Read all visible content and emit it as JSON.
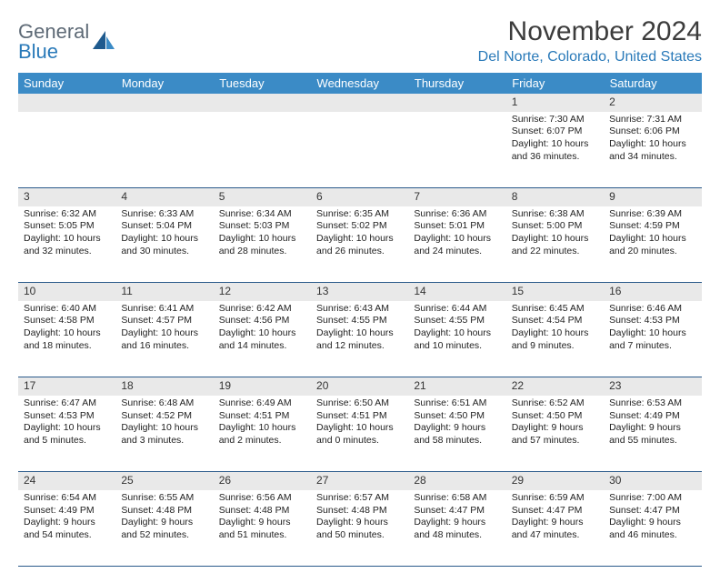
{
  "logo": {
    "line1": "General",
    "line2": "Blue"
  },
  "title": "November 2024",
  "location": "Del Norte, Colorado, United States",
  "colors": {
    "header_bg": "#3b8bc6",
    "header_text": "#ffffff",
    "daynum_bg": "#e9e9e9",
    "accent": "#2a7ab9",
    "rule": "#2a5a8a",
    "logo_gray": "#5e6a76"
  },
  "day_headers": [
    "Sunday",
    "Monday",
    "Tuesday",
    "Wednesday",
    "Thursday",
    "Friday",
    "Saturday"
  ],
  "weeks": [
    {
      "nums": [
        "",
        "",
        "",
        "",
        "",
        "1",
        "2"
      ],
      "cells": [
        null,
        null,
        null,
        null,
        null,
        {
          "sunrise": "Sunrise: 7:30 AM",
          "sunset": "Sunset: 6:07 PM",
          "daylight": "Daylight: 10 hours and 36 minutes."
        },
        {
          "sunrise": "Sunrise: 7:31 AM",
          "sunset": "Sunset: 6:06 PM",
          "daylight": "Daylight: 10 hours and 34 minutes."
        }
      ]
    },
    {
      "nums": [
        "3",
        "4",
        "5",
        "6",
        "7",
        "8",
        "9"
      ],
      "cells": [
        {
          "sunrise": "Sunrise: 6:32 AM",
          "sunset": "Sunset: 5:05 PM",
          "daylight": "Daylight: 10 hours and 32 minutes."
        },
        {
          "sunrise": "Sunrise: 6:33 AM",
          "sunset": "Sunset: 5:04 PM",
          "daylight": "Daylight: 10 hours and 30 minutes."
        },
        {
          "sunrise": "Sunrise: 6:34 AM",
          "sunset": "Sunset: 5:03 PM",
          "daylight": "Daylight: 10 hours and 28 minutes."
        },
        {
          "sunrise": "Sunrise: 6:35 AM",
          "sunset": "Sunset: 5:02 PM",
          "daylight": "Daylight: 10 hours and 26 minutes."
        },
        {
          "sunrise": "Sunrise: 6:36 AM",
          "sunset": "Sunset: 5:01 PM",
          "daylight": "Daylight: 10 hours and 24 minutes."
        },
        {
          "sunrise": "Sunrise: 6:38 AM",
          "sunset": "Sunset: 5:00 PM",
          "daylight": "Daylight: 10 hours and 22 minutes."
        },
        {
          "sunrise": "Sunrise: 6:39 AM",
          "sunset": "Sunset: 4:59 PM",
          "daylight": "Daylight: 10 hours and 20 minutes."
        }
      ]
    },
    {
      "nums": [
        "10",
        "11",
        "12",
        "13",
        "14",
        "15",
        "16"
      ],
      "cells": [
        {
          "sunrise": "Sunrise: 6:40 AM",
          "sunset": "Sunset: 4:58 PM",
          "daylight": "Daylight: 10 hours and 18 minutes."
        },
        {
          "sunrise": "Sunrise: 6:41 AM",
          "sunset": "Sunset: 4:57 PM",
          "daylight": "Daylight: 10 hours and 16 minutes."
        },
        {
          "sunrise": "Sunrise: 6:42 AM",
          "sunset": "Sunset: 4:56 PM",
          "daylight": "Daylight: 10 hours and 14 minutes."
        },
        {
          "sunrise": "Sunrise: 6:43 AM",
          "sunset": "Sunset: 4:55 PM",
          "daylight": "Daylight: 10 hours and 12 minutes."
        },
        {
          "sunrise": "Sunrise: 6:44 AM",
          "sunset": "Sunset: 4:55 PM",
          "daylight": "Daylight: 10 hours and 10 minutes."
        },
        {
          "sunrise": "Sunrise: 6:45 AM",
          "sunset": "Sunset: 4:54 PM",
          "daylight": "Daylight: 10 hours and 9 minutes."
        },
        {
          "sunrise": "Sunrise: 6:46 AM",
          "sunset": "Sunset: 4:53 PM",
          "daylight": "Daylight: 10 hours and 7 minutes."
        }
      ]
    },
    {
      "nums": [
        "17",
        "18",
        "19",
        "20",
        "21",
        "22",
        "23"
      ],
      "cells": [
        {
          "sunrise": "Sunrise: 6:47 AM",
          "sunset": "Sunset: 4:53 PM",
          "daylight": "Daylight: 10 hours and 5 minutes."
        },
        {
          "sunrise": "Sunrise: 6:48 AM",
          "sunset": "Sunset: 4:52 PM",
          "daylight": "Daylight: 10 hours and 3 minutes."
        },
        {
          "sunrise": "Sunrise: 6:49 AM",
          "sunset": "Sunset: 4:51 PM",
          "daylight": "Daylight: 10 hours and 2 minutes."
        },
        {
          "sunrise": "Sunrise: 6:50 AM",
          "sunset": "Sunset: 4:51 PM",
          "daylight": "Daylight: 10 hours and 0 minutes."
        },
        {
          "sunrise": "Sunrise: 6:51 AM",
          "sunset": "Sunset: 4:50 PM",
          "daylight": "Daylight: 9 hours and 58 minutes."
        },
        {
          "sunrise": "Sunrise: 6:52 AM",
          "sunset": "Sunset: 4:50 PM",
          "daylight": "Daylight: 9 hours and 57 minutes."
        },
        {
          "sunrise": "Sunrise: 6:53 AM",
          "sunset": "Sunset: 4:49 PM",
          "daylight": "Daylight: 9 hours and 55 minutes."
        }
      ]
    },
    {
      "nums": [
        "24",
        "25",
        "26",
        "27",
        "28",
        "29",
        "30"
      ],
      "cells": [
        {
          "sunrise": "Sunrise: 6:54 AM",
          "sunset": "Sunset: 4:49 PM",
          "daylight": "Daylight: 9 hours and 54 minutes."
        },
        {
          "sunrise": "Sunrise: 6:55 AM",
          "sunset": "Sunset: 4:48 PM",
          "daylight": "Daylight: 9 hours and 52 minutes."
        },
        {
          "sunrise": "Sunrise: 6:56 AM",
          "sunset": "Sunset: 4:48 PM",
          "daylight": "Daylight: 9 hours and 51 minutes."
        },
        {
          "sunrise": "Sunrise: 6:57 AM",
          "sunset": "Sunset: 4:48 PM",
          "daylight": "Daylight: 9 hours and 50 minutes."
        },
        {
          "sunrise": "Sunrise: 6:58 AM",
          "sunset": "Sunset: 4:47 PM",
          "daylight": "Daylight: 9 hours and 48 minutes."
        },
        {
          "sunrise": "Sunrise: 6:59 AM",
          "sunset": "Sunset: 4:47 PM",
          "daylight": "Daylight: 9 hours and 47 minutes."
        },
        {
          "sunrise": "Sunrise: 7:00 AM",
          "sunset": "Sunset: 4:47 PM",
          "daylight": "Daylight: 9 hours and 46 minutes."
        }
      ]
    }
  ]
}
